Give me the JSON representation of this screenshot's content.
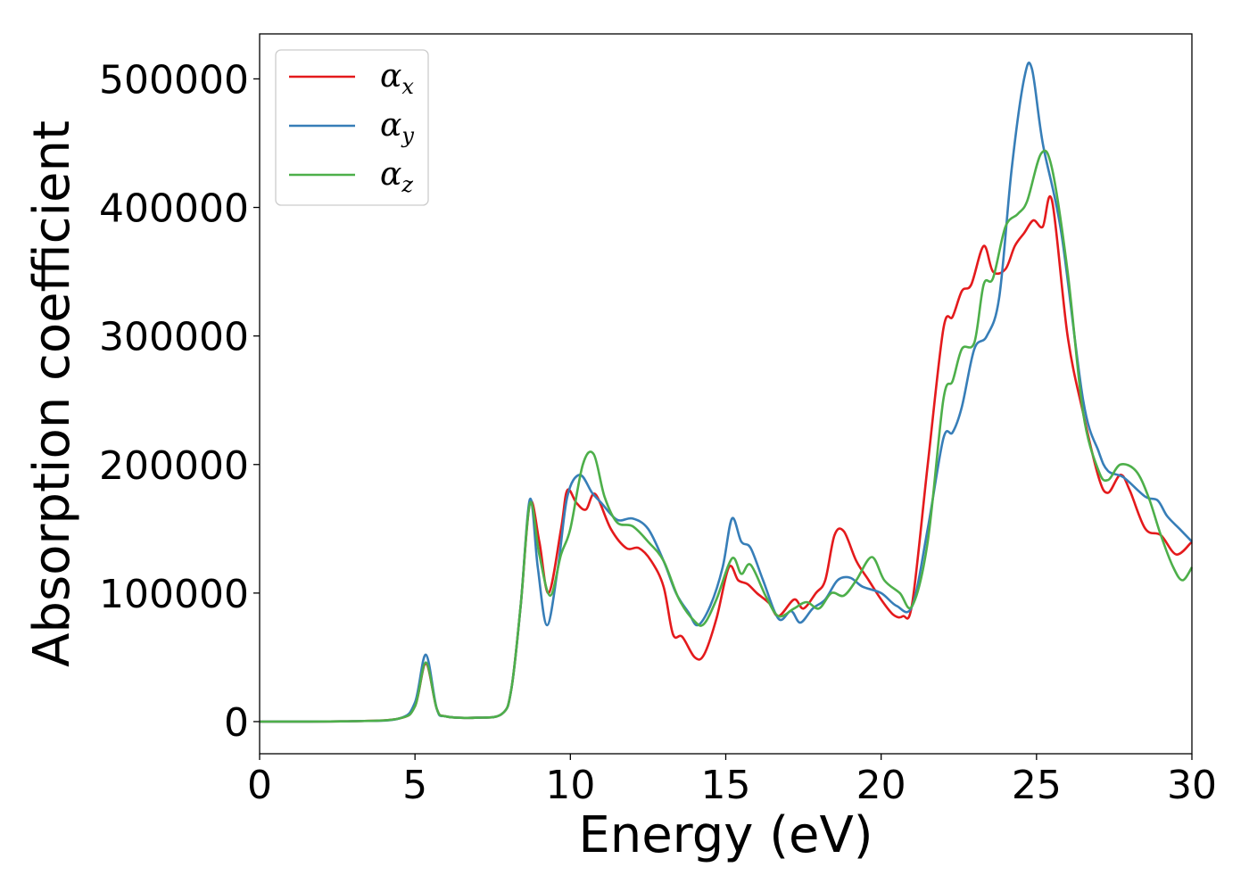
{
  "chart_data": {
    "type": "line",
    "title": "",
    "xlabel": "Energy (eV)",
    "ylabel": "Absorption coefficient",
    "xlim": [
      0,
      30
    ],
    "ylim": [
      -25000,
      535000
    ],
    "xticks": [
      0,
      5,
      10,
      15,
      20,
      25,
      30
    ],
    "yticks": [
      0,
      100000,
      200000,
      300000,
      400000,
      500000
    ],
    "grid": false,
    "legend": "top-left",
    "series": [
      {
        "name": "αx",
        "base": "α",
        "sub": "x",
        "color": "#e41a1c",
        "points": [
          [
            0,
            0
          ],
          [
            3,
            300
          ],
          [
            4.5,
            2500
          ],
          [
            5,
            12000
          ],
          [
            5.35,
            45000
          ],
          [
            5.7,
            10000
          ],
          [
            6,
            4000
          ],
          [
            7,
            3000
          ],
          [
            7.8,
            6000
          ],
          [
            8.1,
            25000
          ],
          [
            8.4,
            90000
          ],
          [
            8.7,
            170000
          ],
          [
            9,
            140000
          ],
          [
            9.3,
            100000
          ],
          [
            9.7,
            150000
          ],
          [
            9.9,
            180000
          ],
          [
            10.2,
            170000
          ],
          [
            10.5,
            165000
          ],
          [
            10.8,
            177000
          ],
          [
            11.3,
            150000
          ],
          [
            11.8,
            135000
          ],
          [
            12.2,
            135000
          ],
          [
            12.6,
            125000
          ],
          [
            13,
            105000
          ],
          [
            13.3,
            68000
          ],
          [
            13.6,
            66000
          ],
          [
            14,
            50000
          ],
          [
            14.3,
            52000
          ],
          [
            14.7,
            80000
          ],
          [
            15.1,
            120000
          ],
          [
            15.4,
            110000
          ],
          [
            15.7,
            107000
          ],
          [
            16,
            100000
          ],
          [
            16.4,
            92000
          ],
          [
            16.7,
            82000
          ],
          [
            17.2,
            95000
          ],
          [
            17.5,
            88000
          ],
          [
            17.9,
            100000
          ],
          [
            18.2,
            110000
          ],
          [
            18.5,
            145000
          ],
          [
            18.8,
            148000
          ],
          [
            19.2,
            125000
          ],
          [
            19.6,
            110000
          ],
          [
            20,
            95000
          ],
          [
            20.4,
            83000
          ],
          [
            20.7,
            82000
          ],
          [
            21,
            92000
          ],
          [
            21.5,
            200000
          ],
          [
            22,
            305000
          ],
          [
            22.3,
            315000
          ],
          [
            22.6,
            335000
          ],
          [
            22.9,
            340000
          ],
          [
            23.3,
            370000
          ],
          [
            23.6,
            350000
          ],
          [
            24,
            352000
          ],
          [
            24.3,
            370000
          ],
          [
            24.6,
            380000
          ],
          [
            24.9,
            390000
          ],
          [
            25.2,
            385000
          ],
          [
            25.5,
            405000
          ],
          [
            26,
            300000
          ],
          [
            26.5,
            240000
          ],
          [
            27,
            190000
          ],
          [
            27.3,
            178000
          ],
          [
            27.7,
            192000
          ],
          [
            28,
            180000
          ],
          [
            28.5,
            150000
          ],
          [
            29,
            145000
          ],
          [
            29.5,
            130000
          ],
          [
            30,
            140000
          ]
        ]
      },
      {
        "name": "αy",
        "base": "α",
        "sub": "y",
        "color": "#377eb8",
        "points": [
          [
            0,
            0
          ],
          [
            3,
            300
          ],
          [
            4.5,
            2500
          ],
          [
            5,
            15000
          ],
          [
            5.35,
            52000
          ],
          [
            5.7,
            10000
          ],
          [
            6,
            4000
          ],
          [
            7,
            3000
          ],
          [
            7.8,
            6000
          ],
          [
            8.1,
            25000
          ],
          [
            8.4,
            90000
          ],
          [
            8.7,
            173000
          ],
          [
            8.95,
            120000
          ],
          [
            9.25,
            75000
          ],
          [
            9.6,
            120000
          ],
          [
            9.9,
            175000
          ],
          [
            10.3,
            192000
          ],
          [
            10.7,
            178000
          ],
          [
            11,
            170000
          ],
          [
            11.5,
            157000
          ],
          [
            12,
            158000
          ],
          [
            12.5,
            150000
          ],
          [
            13,
            125000
          ],
          [
            13.4,
            100000
          ],
          [
            13.8,
            85000
          ],
          [
            14.1,
            75000
          ],
          [
            14.5,
            90000
          ],
          [
            14.9,
            120000
          ],
          [
            15.2,
            158000
          ],
          [
            15.5,
            140000
          ],
          [
            15.8,
            135000
          ],
          [
            16.2,
            110000
          ],
          [
            16.7,
            80000
          ],
          [
            17.1,
            86000
          ],
          [
            17.4,
            77000
          ],
          [
            17.8,
            88000
          ],
          [
            18.2,
            95000
          ],
          [
            18.6,
            110000
          ],
          [
            19,
            112000
          ],
          [
            19.4,
            105000
          ],
          [
            20,
            100000
          ],
          [
            20.5,
            90000
          ],
          [
            21,
            90000
          ],
          [
            21.5,
            150000
          ],
          [
            22,
            220000
          ],
          [
            22.3,
            225000
          ],
          [
            22.6,
            245000
          ],
          [
            23,
            290000
          ],
          [
            23.4,
            300000
          ],
          [
            23.8,
            330000
          ],
          [
            24.2,
            430000
          ],
          [
            24.6,
            500000
          ],
          [
            24.85,
            508000
          ],
          [
            25.2,
            450000
          ],
          [
            25.8,
            380000
          ],
          [
            26.5,
            250000
          ],
          [
            27,
            210000
          ],
          [
            27.3,
            195000
          ],
          [
            27.8,
            190000
          ],
          [
            28.5,
            175000
          ],
          [
            28.9,
            172000
          ],
          [
            29.2,
            160000
          ],
          [
            29.6,
            150000
          ],
          [
            30,
            140000
          ]
        ]
      },
      {
        "name": "αz",
        "base": "α",
        "sub": "z",
        "color": "#4daf4a",
        "points": [
          [
            0,
            0
          ],
          [
            3,
            300
          ],
          [
            4.5,
            2500
          ],
          [
            5,
            12000
          ],
          [
            5.35,
            46000
          ],
          [
            5.7,
            10000
          ],
          [
            6,
            4000
          ],
          [
            7,
            3000
          ],
          [
            7.8,
            6000
          ],
          [
            8.1,
            25000
          ],
          [
            8.4,
            90000
          ],
          [
            8.7,
            170000
          ],
          [
            9,
            130000
          ],
          [
            9.35,
            98000
          ],
          [
            9.7,
            130000
          ],
          [
            10,
            150000
          ],
          [
            10.4,
            200000
          ],
          [
            10.75,
            208000
          ],
          [
            11.1,
            175000
          ],
          [
            11.5,
            155000
          ],
          [
            12,
            152000
          ],
          [
            12.5,
            140000
          ],
          [
            13,
            125000
          ],
          [
            13.5,
            95000
          ],
          [
            14,
            78000
          ],
          [
            14.3,
            76000
          ],
          [
            14.7,
            95000
          ],
          [
            15.2,
            127000
          ],
          [
            15.5,
            115000
          ],
          [
            15.8,
            122000
          ],
          [
            16.3,
            97000
          ],
          [
            16.7,
            82000
          ],
          [
            17.2,
            88000
          ],
          [
            17.6,
            93000
          ],
          [
            18,
            88000
          ],
          [
            18.4,
            100000
          ],
          [
            18.8,
            98000
          ],
          [
            19.2,
            110000
          ],
          [
            19.7,
            128000
          ],
          [
            20.1,
            110000
          ],
          [
            20.6,
            100000
          ],
          [
            21,
            90000
          ],
          [
            21.5,
            140000
          ],
          [
            22,
            250000
          ],
          [
            22.3,
            265000
          ],
          [
            22.6,
            290000
          ],
          [
            23,
            295000
          ],
          [
            23.3,
            340000
          ],
          [
            23.6,
            345000
          ],
          [
            24,
            385000
          ],
          [
            24.4,
            395000
          ],
          [
            24.7,
            405000
          ],
          [
            25.15,
            442000
          ],
          [
            25.5,
            430000
          ],
          [
            26,
            350000
          ],
          [
            26.5,
            240000
          ],
          [
            27,
            195000
          ],
          [
            27.3,
            188000
          ],
          [
            27.7,
            200000
          ],
          [
            28.2,
            195000
          ],
          [
            28.6,
            175000
          ],
          [
            29,
            145000
          ],
          [
            29.4,
            120000
          ],
          [
            29.7,
            110000
          ],
          [
            30,
            120000
          ]
        ]
      }
    ]
  }
}
